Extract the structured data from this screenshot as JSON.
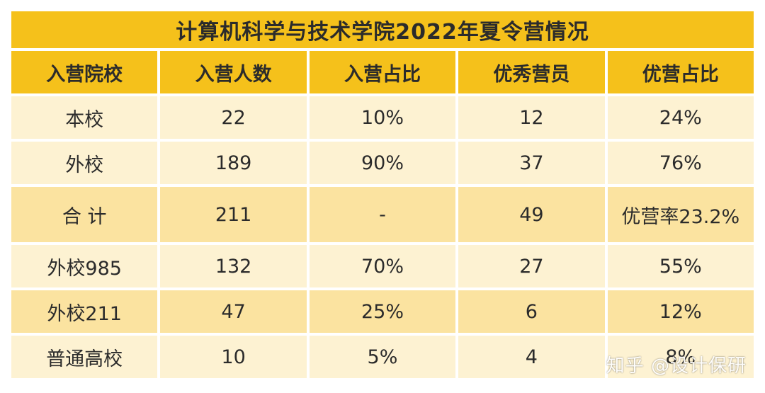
{
  "table": {
    "title": "计算机科学与技术学院2022年夏令营情况",
    "headers": [
      "入营院校",
      "入营人数",
      "入营占比",
      "优秀营员",
      "优营占比"
    ],
    "rows": [
      [
        "本校",
        "22",
        "10%",
        "12",
        "24%"
      ],
      [
        "外校",
        "189",
        "90%",
        "37",
        "76%"
      ],
      [
        "合 计",
        "211",
        "-",
        "49",
        "优营率23.2%"
      ],
      [
        "外校985",
        "132",
        "70%",
        "27",
        "55%"
      ],
      [
        "外校211",
        "47",
        "25%",
        "6",
        "12%"
      ],
      [
        "普通高校",
        "10",
        "5%",
        "4",
        "8%"
      ]
    ]
  },
  "watermark": "知乎 @设计保研",
  "colors": {
    "header": "#f5c11b",
    "row_light": "#fdf2d2",
    "row_dark": "#fbe3a0"
  }
}
